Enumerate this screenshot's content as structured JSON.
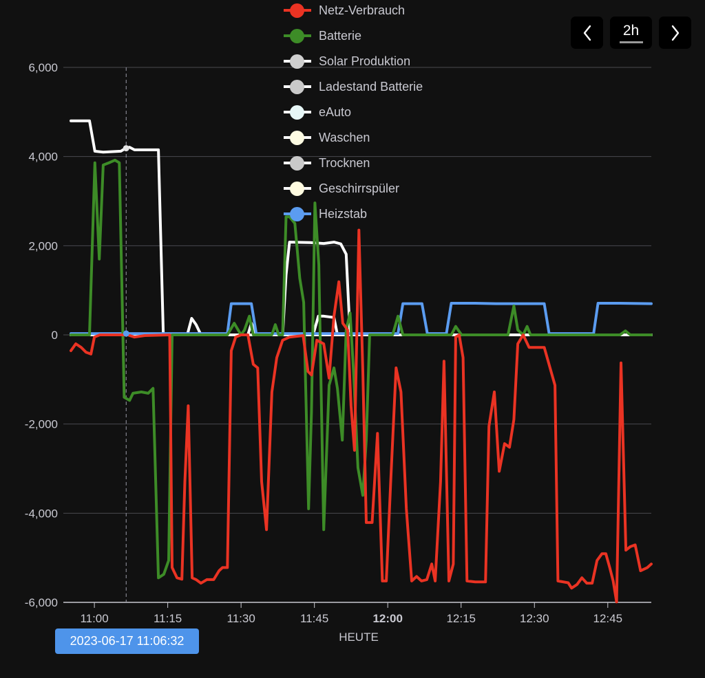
{
  "controls": {
    "prev_icon": "chevron-left-icon",
    "range_label": "2h",
    "next_icon": "chevron-right-icon"
  },
  "tooltip": {
    "label": "2023-06-17 11:06:32",
    "x": 6.5
  },
  "chart_data": {
    "type": "line",
    "x_unit": "minutes since 11:00",
    "xlim": [
      -4.8,
      113.9
    ],
    "ylim": [
      -6000,
      6000
    ],
    "y_ticks": [
      6000,
      4000,
      2000,
      0,
      -2000,
      -4000,
      -6000
    ],
    "y_tick_labels": [
      "6,000",
      "4,000",
      "2,000",
      "0",
      "-2,000",
      "-4,000",
      "-6,000"
    ],
    "x_ticks": [
      {
        "x": 0,
        "label": "11:00",
        "bold": false
      },
      {
        "x": 15,
        "label": "11:15",
        "bold": false
      },
      {
        "x": 30,
        "label": "11:30",
        "bold": false
      },
      {
        "x": 45,
        "label": "11:45",
        "bold": false
      },
      {
        "x": 60,
        "label": "12:00",
        "bold": true
      },
      {
        "x": 75,
        "label": "12:15",
        "bold": false
      },
      {
        "x": 90,
        "label": "12:30",
        "bold": false
      },
      {
        "x": 105,
        "label": "12:45",
        "bold": false
      }
    ],
    "x_sublabel": "HEUTE",
    "grid": true,
    "legend_position": "top-center",
    "series": [
      {
        "name": "Netz-Verbrauch",
        "color": "#ea3323",
        "dot": "#ea3323",
        "points": [
          [
            -4.8,
            -355
          ],
          [
            -3.8,
            -200
          ],
          [
            -2.7,
            -280
          ],
          [
            -1.7,
            -390
          ],
          [
            -0.7,
            -430
          ],
          [
            0,
            -50
          ],
          [
            1.1,
            0
          ],
          [
            6.8,
            0
          ],
          [
            8.2,
            -50
          ],
          [
            10.3,
            -15
          ],
          [
            15.4,
            0
          ],
          [
            15.9,
            -5220
          ],
          [
            16.9,
            -5450
          ],
          [
            17.9,
            -5480
          ],
          [
            18.5,
            -3290
          ],
          [
            19.2,
            -1590
          ],
          [
            20.0,
            -5450
          ],
          [
            20.8,
            -5490
          ],
          [
            21.8,
            -5570
          ],
          [
            23.0,
            -5490
          ],
          [
            24.4,
            -5490
          ],
          [
            25.5,
            -5290
          ],
          [
            26.2,
            -5220
          ],
          [
            27.2,
            -5220
          ],
          [
            28.0,
            -355
          ],
          [
            28.9,
            -50
          ],
          [
            30.0,
            0
          ],
          [
            31.4,
            0
          ],
          [
            32.5,
            -660
          ],
          [
            33.4,
            -740
          ],
          [
            34.2,
            -3290
          ],
          [
            35.2,
            -4370
          ],
          [
            36.3,
            -1280
          ],
          [
            37.3,
            -510
          ],
          [
            38.5,
            -120
          ],
          [
            39.9,
            -50
          ],
          [
            42.7,
            -15
          ],
          [
            43.7,
            -820
          ],
          [
            44.4,
            -900
          ],
          [
            45.5,
            -120
          ],
          [
            46.9,
            -200
          ],
          [
            48.0,
            -970
          ],
          [
            49.0,
            420
          ],
          [
            50.0,
            1190
          ],
          [
            50.8,
            260
          ],
          [
            51.8,
            110
          ],
          [
            52.5,
            -1590
          ],
          [
            53.2,
            -2590
          ],
          [
            54.1,
            2350
          ],
          [
            54.9,
            -820
          ],
          [
            55.6,
            -4210
          ],
          [
            56.8,
            -4210
          ],
          [
            57.9,
            -2210
          ],
          [
            58.9,
            -5520
          ],
          [
            59.7,
            -5520
          ],
          [
            60.6,
            -3290
          ],
          [
            61.7,
            -740
          ],
          [
            62.7,
            -1280
          ],
          [
            63.8,
            -3900
          ],
          [
            64.9,
            -5520
          ],
          [
            65.9,
            -5420
          ],
          [
            66.9,
            -5520
          ],
          [
            68.0,
            -5490
          ],
          [
            69.0,
            -5140
          ],
          [
            69.7,
            -5520
          ],
          [
            70.8,
            -3290
          ],
          [
            71.5,
            -590
          ],
          [
            72.5,
            -5520
          ],
          [
            73.4,
            -5140
          ],
          [
            73.9,
            -50
          ],
          [
            74.6,
            0
          ],
          [
            75.4,
            -510
          ],
          [
            76.2,
            -5520
          ],
          [
            77.9,
            -5540
          ],
          [
            80.0,
            -5540
          ],
          [
            80.7,
            -2050
          ],
          [
            81.8,
            -1280
          ],
          [
            82.8,
            -3060
          ],
          [
            83.9,
            -2440
          ],
          [
            84.9,
            -2520
          ],
          [
            85.8,
            -1900
          ],
          [
            86.6,
            -200
          ],
          [
            87.7,
            0
          ],
          [
            88.9,
            -280
          ],
          [
            92.0,
            -280
          ],
          [
            93.4,
            -820
          ],
          [
            94.2,
            -1130
          ],
          [
            94.8,
            -5520
          ],
          [
            96.9,
            -5560
          ],
          [
            97.6,
            -5680
          ],
          [
            98.7,
            -5600
          ],
          [
            99.7,
            -5450
          ],
          [
            100.7,
            -5570
          ],
          [
            101.8,
            -5570
          ],
          [
            102.8,
            -5060
          ],
          [
            103.8,
            -4910
          ],
          [
            104.6,
            -4910
          ],
          [
            105.4,
            -5220
          ],
          [
            106.1,
            -5520
          ],
          [
            106.8,
            -5990
          ],
          [
            107.7,
            -630
          ],
          [
            108.7,
            -4830
          ],
          [
            109.6,
            -4750
          ],
          [
            110.6,
            -4710
          ],
          [
            111.7,
            -5290
          ],
          [
            113.1,
            -5220
          ],
          [
            113.9,
            -5140
          ]
        ]
      },
      {
        "name": "Batterie",
        "color": "#3d8c27",
        "dot": "#3d8c27",
        "points": [
          [
            -4.8,
            0
          ],
          [
            -1.0,
            0
          ],
          [
            0.1,
            3860
          ],
          [
            1.0,
            1700
          ],
          [
            1.8,
            3810
          ],
          [
            3.2,
            3870
          ],
          [
            4.2,
            3920
          ],
          [
            5.1,
            3860
          ],
          [
            6.1,
            -1400
          ],
          [
            7.2,
            -1470
          ],
          [
            7.9,
            -1310
          ],
          [
            9.6,
            -1280
          ],
          [
            11.0,
            -1310
          ],
          [
            12.0,
            -1200
          ],
          [
            13.1,
            -5450
          ],
          [
            14.2,
            -5370
          ],
          [
            15.2,
            -5060
          ],
          [
            15.9,
            0
          ],
          [
            27.2,
            0
          ],
          [
            28.6,
            260
          ],
          [
            30.0,
            0
          ],
          [
            30.7,
            110
          ],
          [
            31.7,
            420
          ],
          [
            32.5,
            0
          ],
          [
            36.3,
            0
          ],
          [
            37.0,
            230
          ],
          [
            37.7,
            0
          ],
          [
            38.5,
            0
          ],
          [
            39.2,
            2650
          ],
          [
            39.9,
            2650
          ],
          [
            41.0,
            2500
          ],
          [
            42.0,
            1270
          ],
          [
            42.8,
            730
          ],
          [
            43.8,
            -3900
          ],
          [
            44.4,
            -1740
          ],
          [
            45.1,
            2960
          ],
          [
            45.9,
            1570
          ],
          [
            46.9,
            -4370
          ],
          [
            48.0,
            -1130
          ],
          [
            49.0,
            -740
          ],
          [
            49.7,
            -1200
          ],
          [
            50.7,
            -2360
          ],
          [
            51.5,
            110
          ],
          [
            52.3,
            490
          ],
          [
            53.0,
            -820
          ],
          [
            53.9,
            -2980
          ],
          [
            54.9,
            -3600
          ],
          [
            55.6,
            -2360
          ],
          [
            56.3,
            0
          ],
          [
            61.0,
            0
          ],
          [
            62.1,
            420
          ],
          [
            63.1,
            0
          ],
          [
            73.0,
            0
          ],
          [
            73.9,
            190
          ],
          [
            75.1,
            0
          ],
          [
            84.6,
            0
          ],
          [
            85.8,
            650
          ],
          [
            86.6,
            110
          ],
          [
            87.7,
            0
          ],
          [
            88.5,
            190
          ],
          [
            89.2,
            0
          ],
          [
            107.5,
            0
          ],
          [
            108.6,
            90
          ],
          [
            109.6,
            0
          ],
          [
            113.9,
            0
          ]
        ]
      },
      {
        "name": "Solar Produktion",
        "color": "#ffffff",
        "dot": "#cfcfcf",
        "points": [
          [
            -4.8,
            4800
          ],
          [
            -1.0,
            4800
          ],
          [
            0.1,
            4120
          ],
          [
            1.8,
            4100
          ],
          [
            5.4,
            4120
          ],
          [
            6.3,
            4180
          ],
          [
            7.2,
            4210
          ],
          [
            8.2,
            4150
          ],
          [
            13.1,
            4150
          ],
          [
            14.1,
            0
          ],
          [
            19.0,
            0
          ],
          [
            19.9,
            370
          ],
          [
            20.8,
            230
          ],
          [
            21.8,
            0
          ],
          [
            31.4,
            0
          ],
          [
            32.1,
            260
          ],
          [
            33.1,
            0
          ],
          [
            38.5,
            0
          ],
          [
            39.2,
            1340
          ],
          [
            39.9,
            2080
          ],
          [
            44.1,
            2070
          ],
          [
            46.9,
            2050
          ],
          [
            49.0,
            2080
          ],
          [
            50.4,
            2040
          ],
          [
            51.5,
            1810
          ],
          [
            52.3,
            0
          ],
          [
            113.9,
            0
          ]
        ]
      },
      {
        "name": "Ladestand Batterie",
        "color": "#ffffff",
        "dot": "#c9c9c9",
        "points": [
          [
            -4.8,
            0
          ],
          [
            113.9,
            0
          ]
        ]
      },
      {
        "name": "eAuto",
        "color": "#ffffff",
        "dot": "#e6f6f6",
        "points": [
          [
            -4.8,
            0
          ],
          [
            113.9,
            0
          ]
        ]
      },
      {
        "name": "Waschen",
        "color": "#ffffff",
        "dot": "#fdfbe2",
        "points": [
          [
            -4.8,
            0
          ],
          [
            42.7,
            0
          ],
          [
            44.8,
            30
          ],
          [
            45.8,
            420
          ],
          [
            46.9,
            420
          ],
          [
            49.0,
            390
          ],
          [
            49.7,
            0
          ],
          [
            113.9,
            0
          ]
        ]
      },
      {
        "name": "Trocknen",
        "color": "#ffffff",
        "dot": "#c9c9c9",
        "points": [
          [
            -4.8,
            0
          ],
          [
            113.9,
            0
          ]
        ]
      },
      {
        "name": "Geschirrspüler",
        "color": "#ffffff",
        "dot": "#fffbe0",
        "points": [
          [
            -4.8,
            0
          ],
          [
            113.9,
            0
          ]
        ]
      },
      {
        "name": "Heizstab",
        "color": "#5b9cf0",
        "dot": "#5b9cf0",
        "points": [
          [
            -4.8,
            30
          ],
          [
            27.2,
            30
          ],
          [
            28.0,
            700
          ],
          [
            32.1,
            700
          ],
          [
            33.1,
            30
          ],
          [
            62.1,
            30
          ],
          [
            63.1,
            700
          ],
          [
            67.0,
            700
          ],
          [
            68.1,
            30
          ],
          [
            72.0,
            30
          ],
          [
            73.0,
            710
          ],
          [
            77.9,
            710
          ],
          [
            82.1,
            700
          ],
          [
            92.0,
            700
          ],
          [
            93.0,
            30
          ],
          [
            102.1,
            30
          ],
          [
            103.0,
            710
          ],
          [
            107.5,
            710
          ],
          [
            113.9,
            700
          ]
        ]
      }
    ]
  }
}
